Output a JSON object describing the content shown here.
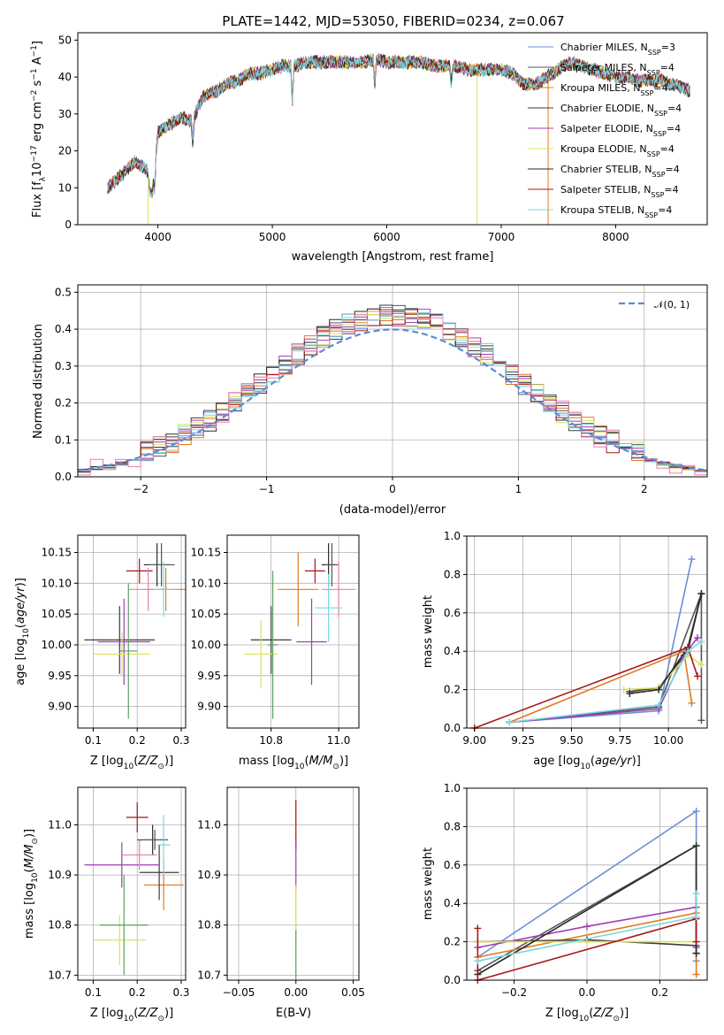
{
  "title": "PLATE=1442, MJD=53050, FIBERID=0234, z=0.067",
  "colors": [
    "#6a8fd8",
    "#555555",
    "#e07b20",
    "#3d3d3d",
    "#a03cb4",
    "#dde05a",
    "#2a2a2a",
    "#a81818",
    "#7ad8e0"
  ],
  "chart_data": [
    {
      "name": "spectrum",
      "type": "line",
      "xlabel": "wavelength [Angstrom, rest frame]",
      "ylabel": "Flux [f_λ 10^-17 erg cm^-2 s^-1 A^-1]",
      "xlim": [
        3300,
        8800
      ],
      "ylim": [
        0,
        52
      ],
      "xticks": [
        "4000",
        "5000",
        "6000",
        "7000",
        "8000"
      ],
      "xtick_values": [
        4000,
        5000,
        6000,
        7000,
        8000
      ],
      "yticks": [
        "0",
        "10",
        "20",
        "30",
        "40",
        "50"
      ],
      "ytick_values": [
        0,
        10,
        20,
        30,
        40,
        50
      ],
      "legend_position": "top-right",
      "legend": [
        {
          "main": "Chabrier MILES, N",
          "sub": "SSP",
          "tail": "=3"
        },
        {
          "main": "Salpeter MILES, N",
          "sub": "SSP",
          "tail": "=4"
        },
        {
          "main": "Kroupa MILES, N",
          "sub": "SSP",
          "tail": "=4"
        },
        {
          "main": "Chabrier ELODIE, N",
          "sub": "SSP",
          "tail": "=4"
        },
        {
          "main": "Salpeter ELODIE, N",
          "sub": "SSP",
          "tail": "=4"
        },
        {
          "main": "Kroupa ELODIE, N",
          "sub": "SSP",
          "tail": "=4"
        },
        {
          "main": "Chabrier STELIB, N",
          "sub": "SSP",
          "tail": "=4"
        },
        {
          "main": "Salpeter STELIB, N",
          "sub": "SSP",
          "tail": "=4"
        },
        {
          "main": "Kroupa STELIB, N",
          "sub": "SSP",
          "tail": "=4"
        }
      ],
      "continuum": {
        "x": [
          3560,
          3700,
          3800,
          3900,
          3950,
          4000,
          4100,
          4200,
          4300,
          4400,
          4500,
          4600,
          4700,
          4800,
          4900,
          5000,
          5100,
          5200,
          5300,
          5400,
          5500,
          5600,
          5700,
          5800,
          5900,
          6000,
          6100,
          6200,
          6300,
          6400,
          6500,
          6600,
          6700,
          6800,
          6900,
          7000,
          7100,
          7200,
          7300,
          7400,
          7500,
          7600,
          7700,
          7800,
          7900,
          8000,
          8100,
          8200,
          8300,
          8400,
          8500,
          8600,
          8650
        ],
        "y": [
          10,
          14,
          17,
          15,
          8,
          25,
          27,
          29,
          28,
          35,
          36,
          38,
          39,
          41,
          41,
          42,
          43,
          43,
          44,
          44,
          44,
          44,
          44,
          44,
          45,
          44,
          44,
          44,
          44,
          43,
          43,
          43,
          42,
          42,
          42,
          42,
          41,
          38,
          38,
          40,
          42,
          44,
          43,
          42,
          41,
          40,
          40,
          39,
          39,
          39,
          38,
          37,
          36
        ]
      },
      "dips": [
        {
          "x": 3935,
          "y": 8
        },
        {
          "x": 3970,
          "y": 9
        },
        {
          "x": 4305,
          "y": 22
        },
        {
          "x": 5175,
          "y": 33
        },
        {
          "x": 5895,
          "y": 38
        },
        {
          "x": 6563,
          "y": 38
        }
      ],
      "masked_spikes": [
        {
          "x": 3915,
          "y_low": 0
        },
        {
          "x": 6790,
          "y_low": 0
        },
        {
          "x": 7410,
          "y_low": 0
        }
      ]
    },
    {
      "name": "residual-histogram",
      "type": "step",
      "xlabel": "(data-model)/error",
      "ylabel": "Normed distribution",
      "xlim": [
        -2.5,
        2.5
      ],
      "ylim": [
        0,
        0.52
      ],
      "xticks": [
        "−2",
        "−1",
        "0",
        "1",
        "2"
      ],
      "xtick_values": [
        -2,
        -1,
        0,
        1,
        2
      ],
      "yticks": [
        "0.0",
        "0.1",
        "0.2",
        "0.3",
        "0.4",
        "0.5"
      ],
      "ytick_values": [
        0,
        0.1,
        0.2,
        0.3,
        0.4,
        0.5
      ],
      "bin_width": 0.1,
      "reference": {
        "name": "𝒩(0, 1)",
        "mean": 0,
        "sigma": 1
      },
      "legend_position": "top-right"
    },
    {
      "name": "age-vs-Z",
      "type": "errorbar",
      "xlabel": "Z [log10(Z/Z⊙)]",
      "ylabel": "age [log10(age/yr)]",
      "xlim": [
        0.065,
        0.31
      ],
      "ylim": [
        9.865,
        10.178
      ],
      "xticks": [
        "0.1",
        "0.2",
        "0.3"
      ],
      "xtick_values": [
        0.1,
        0.2,
        0.3
      ],
      "yticks": [
        "9.90",
        "9.95",
        "10.00",
        "10.05",
        "10.10",
        "10.15"
      ],
      "ytick_values": [
        9.9,
        9.95,
        10.0,
        10.05,
        10.1,
        10.15
      ],
      "points": [
        {
          "x": 0.205,
          "y": 10.12,
          "xerr": 0.03,
          "yerr": 0.02
        },
        {
          "x": 0.245,
          "y": 10.13,
          "xerr": 0.03,
          "yerr": 0.035
        },
        {
          "x": 0.265,
          "y": 10.09,
          "xerr": 0.045,
          "yerr": 0.035
        },
        {
          "x": 0.16,
          "y": 10.008,
          "xerr": 0.08,
          "yerr": 0.055
        },
        {
          "x": 0.17,
          "y": 10.005,
          "xerr": 0.06,
          "yerr": 0.07
        },
        {
          "x": 0.165,
          "y": 9.985,
          "xerr": 0.065,
          "yerr": 0.035
        },
        {
          "x": 0.255,
          "y": 10.13,
          "xerr": 0.03,
          "yerr": 0.035
        },
        {
          "x": 0.225,
          "y": 10.09,
          "xerr": 0.045,
          "yerr": 0.035
        },
        {
          "x": 0.26,
          "y": 10.09,
          "xerr": 0.025,
          "yerr": 0.045
        },
        {
          "x": 0.18,
          "y": 9.99,
          "xerr": 0.02,
          "yerr": 0.11
        }
      ]
    },
    {
      "name": "age-vs-mass",
      "type": "errorbar",
      "xlabel": "mass [log10(M/M⊙)]",
      "ylabel": "",
      "xlim": [
        10.67,
        11.06
      ],
      "ylim": [
        9.865,
        10.178
      ],
      "xticks": [
        "10.8",
        "11.0"
      ],
      "xtick_values": [
        10.8,
        11.0
      ],
      "yticks": [
        "9.90",
        "9.95",
        "10.00",
        "10.05",
        "10.10",
        "10.15"
      ],
      "ytick_values": [
        9.9,
        9.95,
        10.0,
        10.05,
        10.1,
        10.15
      ],
      "points": [
        {
          "x": 10.93,
          "y": 10.12,
          "xerr": 0.03,
          "yerr": 0.02
        },
        {
          "x": 10.97,
          "y": 10.13,
          "xerr": 0.02,
          "yerr": 0.035
        },
        {
          "x": 10.88,
          "y": 10.09,
          "xerr": 0.06,
          "yerr": 0.06
        },
        {
          "x": 10.8,
          "y": 10.008,
          "xerr": 0.06,
          "yerr": 0.055
        },
        {
          "x": 10.92,
          "y": 10.005,
          "xerr": 0.045,
          "yerr": 0.07
        },
        {
          "x": 10.77,
          "y": 9.985,
          "xerr": 0.05,
          "yerr": 0.055
        },
        {
          "x": 10.98,
          "y": 10.13,
          "xerr": 0.02,
          "yerr": 0.035
        },
        {
          "x": 11.0,
          "y": 10.09,
          "xerr": 0.05,
          "yerr": 0.045
        },
        {
          "x": 10.97,
          "y": 10.06,
          "xerr": 0.04,
          "yerr": 0.055
        },
        {
          "x": 10.805,
          "y": 10.0,
          "xerr": 0.015,
          "yerr": 0.12
        }
      ]
    },
    {
      "name": "weight-vs-age",
      "type": "line",
      "xlabel": "age [log10(age/yr)]",
      "ylabel": "mass weight",
      "xlim": [
        8.96,
        10.2
      ],
      "ylim": [
        0,
        1
      ],
      "xticks": [
        "9.00",
        "9.25",
        "9.50",
        "9.75",
        "10.00"
      ],
      "xtick_values": [
        9.0,
        9.25,
        9.5,
        9.75,
        10.0
      ],
      "yticks": [
        "0.0",
        "0.2",
        "0.4",
        "0.6",
        "0.8",
        "1.0"
      ],
      "ytick_values": [
        0,
        0.2,
        0.4,
        0.6,
        0.8,
        1.0
      ],
      "series": [
        {
          "x": [
            9.18,
            9.95,
            10.12
          ],
          "y": [
            0.03,
            0.09,
            0.88
          ]
        },
        {
          "x": [
            9.18,
            9.95,
            10.17,
            10.17
          ],
          "y": [
            0.03,
            0.11,
            0.7,
            0.04
          ]
        },
        {
          "x": [
            9.18,
            10.08,
            10.12
          ],
          "y": [
            0.03,
            0.4,
            0.13
          ]
        },
        {
          "x": [
            9.8,
            9.95,
            10.1,
            10.17
          ],
          "y": [
            0.19,
            0.21,
            0.4,
            0.7
          ]
        },
        {
          "x": [
            9.18,
            9.95,
            10.08,
            10.15
          ],
          "y": [
            0.03,
            0.1,
            0.38,
            0.47
          ]
        },
        {
          "x": [
            9.77,
            9.95,
            10.1,
            10.17
          ],
          "y": [
            0.2,
            0.21,
            0.38,
            0.33
          ]
        },
        {
          "x": [
            9.8,
            9.95,
            10.1,
            10.17
          ],
          "y": [
            0.18,
            0.2,
            0.42,
            0.7
          ]
        },
        {
          "x": [
            9.0,
            10.1,
            10.15
          ],
          "y": [
            0.0,
            0.42,
            0.27
          ]
        },
        {
          "x": [
            9.18,
            9.95,
            10.1,
            10.17
          ],
          "y": [
            0.03,
            0.12,
            0.4,
            0.45
          ]
        }
      ]
    },
    {
      "name": "mass-vs-Z",
      "type": "errorbar",
      "xlabel": "Z [log10(Z/Z⊙)]",
      "ylabel": "mass [log10(M/M⊙)]",
      "xlim": [
        0.065,
        0.31
      ],
      "ylim": [
        10.69,
        11.075
      ],
      "xticks": [
        "0.1",
        "0.2",
        "0.3"
      ],
      "xtick_values": [
        0.1,
        0.2,
        0.3
      ],
      "yticks": [
        "10.7",
        "10.8",
        "10.9",
        "11.0"
      ],
      "ytick_values": [
        10.7,
        10.8,
        10.9,
        11.0
      ],
      "points": [
        {
          "x": 0.2,
          "y": 11.015,
          "xerr": 0.025,
          "yerr": 0.03
        },
        {
          "x": 0.235,
          "y": 10.97,
          "xerr": 0.035,
          "yerr": 0.03
        },
        {
          "x": 0.26,
          "y": 10.88,
          "xerr": 0.045,
          "yerr": 0.05
        },
        {
          "x": 0.25,
          "y": 10.905,
          "xerr": 0.045,
          "yerr": 0.055
        },
        {
          "x": 0.165,
          "y": 10.92,
          "xerr": 0.085,
          "yerr": 0.045
        },
        {
          "x": 0.16,
          "y": 10.77,
          "xerr": 0.06,
          "yerr": 0.05
        },
        {
          "x": 0.24,
          "y": 10.97,
          "xerr": 0.03,
          "yerr": 0.02
        },
        {
          "x": 0.205,
          "y": 10.94,
          "xerr": 0.04,
          "yerr": 0.03
        },
        {
          "x": 0.26,
          "y": 10.96,
          "xerr": 0.015,
          "yerr": 0.06
        },
        {
          "x": 0.17,
          "y": 10.8,
          "xerr": 0.055,
          "yerr": 0.1
        }
      ]
    },
    {
      "name": "mass-vs-ebv",
      "type": "errorbar",
      "xlabel": "E(B-V)",
      "ylabel": "",
      "xlim": [
        -0.06,
        0.055
      ],
      "ylim": [
        10.69,
        11.075
      ],
      "xticks": [
        "−0.05",
        "0.00",
        "0.05"
      ],
      "xtick_values": [
        -0.05,
        0.0,
        0.05
      ],
      "yticks": [
        "10.7",
        "10.8",
        "10.9",
        "11.0"
      ],
      "ytick_values": [
        10.7,
        10.8,
        10.9,
        11.0
      ],
      "points": [
        {
          "x": 0.0,
          "y": 11.0,
          "xerr": 0,
          "yerr": 0.05
        },
        {
          "x": 0.0,
          "y": 10.92,
          "xerr": 0,
          "yerr": 0.05
        },
        {
          "x": 0.0,
          "y": 10.82,
          "xerr": 0,
          "yerr": 0.06
        },
        {
          "x": 0.0,
          "y": 10.74,
          "xerr": 0,
          "yerr": 0.05
        }
      ]
    },
    {
      "name": "weight-vs-Z",
      "type": "line",
      "xlabel": "Z [log10(Z/Z⊙)]",
      "ylabel": "mass weight",
      "xlim": [
        -0.33,
        0.33
      ],
      "ylim": [
        0,
        1
      ],
      "xticks": [
        "−0.2",
        "0.0",
        "0.2"
      ],
      "xtick_values": [
        -0.2,
        0.0,
        0.2
      ],
      "yticks": [
        "0.0",
        "0.2",
        "0.4",
        "0.6",
        "0.8",
        "1.0"
      ],
      "ytick_values": [
        0,
        0.2,
        0.4,
        0.6,
        0.8,
        1.0
      ],
      "series": [
        {
          "x": [
            -0.3,
            0.3,
            0.3
          ],
          "y": [
            0.12,
            0.88,
            0.1
          ]
        },
        {
          "x": [
            -0.3,
            0.3,
            0.3
          ],
          "y": [
            0.05,
            0.7,
            0.14
          ]
        },
        {
          "x": [
            -0.3,
            0.3,
            0.3
          ],
          "y": [
            0.12,
            0.35,
            0.03
          ]
        },
        {
          "x": [
            -0.3,
            0.0,
            0.3
          ],
          "y": [
            0.2,
            0.21,
            0.18
          ]
        },
        {
          "x": [
            -0.3,
            0.0,
            0.3,
            0.3
          ],
          "y": [
            0.17,
            0.28,
            0.38,
            0.17
          ]
        },
        {
          "x": [
            -0.3,
            0.0,
            0.3
          ],
          "y": [
            0.2,
            0.2,
            0.2
          ]
        },
        {
          "x": [
            -0.3,
            0.3,
            0.3
          ],
          "y": [
            0.03,
            0.7,
            0.14
          ]
        },
        {
          "x": [
            -0.3,
            -0.3,
            0.3,
            0.3
          ],
          "y": [
            0.27,
            0.0,
            0.32,
            0.2
          ]
        },
        {
          "x": [
            -0.3,
            0.3,
            0.3
          ],
          "y": [
            0.1,
            0.33,
            0.45
          ]
        }
      ]
    }
  ]
}
